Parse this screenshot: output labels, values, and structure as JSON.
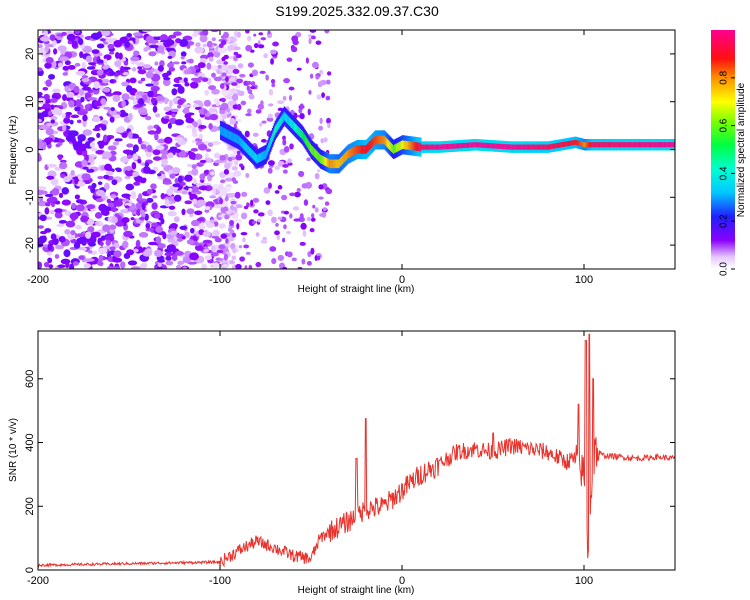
{
  "chart_data": [
    {
      "type": "heatmap",
      "title": "S199.2025.332.09.37.C30",
      "xlabel": "Height of straight line (km)",
      "ylabel": "Frequency (Hz)",
      "xlim": [
        -200,
        150
      ],
      "ylim": [
        -25,
        25
      ],
      "xticks": [
        -200,
        -100,
        0,
        100
      ],
      "yticks": [
        -20,
        -10,
        0,
        10,
        20
      ],
      "xtick_labels": [
        "-200",
        "-100",
        "0",
        "100"
      ],
      "ytick_labels": [
        "-20",
        "-10",
        "0",
        "10",
        "20"
      ],
      "colorbar": {
        "label": "Normalized spectral amplitude",
        "range": [
          0.0,
          1.0
        ],
        "ticks": [
          0.0,
          0.2,
          0.4,
          0.6,
          0.8
        ],
        "tick_labels": [
          "0.0",
          "0.2",
          "0.4",
          "0.6",
          "0.8"
        ],
        "colormap": "rainbow (white-purple-blue-cyan-green-yellow-red-magenta)"
      },
      "noise_region_km": [
        -200,
        -100
      ],
      "signal_trace": {
        "height_km": [
          -100,
          -90,
          -85,
          -80,
          -75,
          -70,
          -65,
          -60,
          -55,
          -50,
          -45,
          -40,
          -35,
          -30,
          -25,
          -20,
          -15,
          -10,
          -5,
          0,
          10,
          20,
          40,
          60,
          80,
          95,
          100,
          105,
          150
        ],
        "frequency_hz": [
          4,
          2,
          0,
          -2,
          -1,
          4,
          7,
          5,
          3,
          0,
          -2,
          -3,
          -3,
          -1,
          0,
          0,
          2,
          2,
          0,
          1,
          0.5,
          0.5,
          1,
          0.5,
          0.5,
          1.5,
          1,
          1,
          1
        ],
        "amplitude": [
          0.3,
          0.3,
          0.35,
          0.35,
          0.3,
          0.45,
          0.35,
          0.4,
          0.5,
          0.6,
          0.6,
          0.8,
          0.75,
          0.8,
          0.85,
          0.9,
          0.85,
          0.8,
          0.6,
          0.7,
          0.95,
          1.0,
          1.0,
          1.0,
          0.95,
          0.9,
          0.8,
          0.95,
          1.0
        ]
      }
    },
    {
      "type": "line",
      "xlabel": "Height of straight line (km)",
      "ylabel": "SNR (10 * v/v)",
      "xlim": [
        -200,
        150
      ],
      "ylim": [
        0,
        750
      ],
      "xticks": [
        -200,
        -100,
        0,
        100
      ],
      "yticks": [
        0,
        200,
        400,
        600
      ],
      "xtick_labels": [
        "-200",
        "-100",
        "0",
        "100"
      ],
      "ytick_labels": [
        "0",
        "200",
        "400",
        "600"
      ],
      "color": "#e8332d",
      "baseline": {
        "x": [
          -200,
          -100,
          -90,
          -80,
          -70,
          -60,
          -50,
          -45,
          -40,
          -30,
          -20,
          -10,
          0,
          10,
          20,
          30,
          40,
          50,
          60,
          70,
          80,
          90,
          95,
          100,
          102,
          104,
          106,
          110,
          120,
          130,
          140,
          150
        ],
        "y": [
          15,
          25,
          60,
          90,
          70,
          45,
          35,
          100,
          120,
          150,
          190,
          200,
          250,
          300,
          330,
          370,
          380,
          370,
          390,
          380,
          370,
          340,
          350,
          300,
          60,
          250,
          380,
          360,
          355,
          350,
          355,
          350
        ]
      },
      "spikes": {
        "x": [
          -25,
          -20,
          50,
          97,
          101,
          103,
          105
        ],
        "y": [
          350,
          475,
          430,
          520,
          720,
          740,
          600
        ]
      }
    }
  ]
}
